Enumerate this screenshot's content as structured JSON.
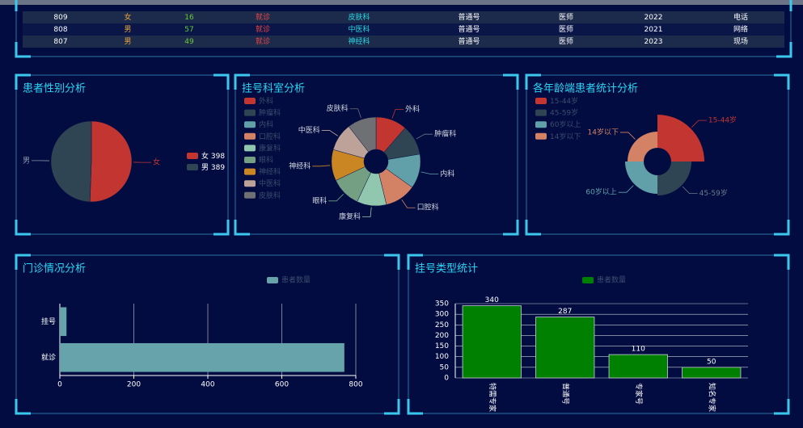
{
  "table": {
    "rows": [
      [
        809,
        "女",
        16,
        "就诊",
        "皮肤科",
        "普通号",
        "医师",
        2022,
        "电话"
      ],
      [
        808,
        "男",
        57,
        "就诊",
        "中医科",
        "普通号",
        "医师",
        2021,
        "网络"
      ],
      [
        807,
        "男",
        49,
        "就诊",
        "神经科",
        "普通号",
        "医师",
        2023,
        "现场"
      ]
    ]
  },
  "chart_data": [
    {
      "type": "pie",
      "title": "患者性别分析",
      "categories": [
        "女",
        "男"
      ],
      "values": [
        398,
        389
      ],
      "colors": [
        "#c23531",
        "#2f4554"
      ],
      "legend": "right"
    },
    {
      "type": "pie",
      "title": "挂号科室分析",
      "categories": [
        "外科",
        "肿瘤科",
        "内科",
        "口腔科",
        "康复科",
        "眼科",
        "神经科",
        "中医科",
        "皮肤科"
      ],
      "values": [
        95,
        92,
        105,
        95,
        90,
        92,
        95,
        85,
        88
      ],
      "colors": [
        "#c23531",
        "#2f4554",
        "#61a0a8",
        "#d48265",
        "#91c7ae",
        "#749f83",
        "#ca8622",
        "#bda29a",
        "#6e7074"
      ],
      "legend": "left"
    },
    {
      "type": "pie",
      "rose": true,
      "title": "各年龄端患者统计分析",
      "categories": [
        "15-44岁",
        "45-59岁",
        "60岁以上",
        "14岁以下"
      ],
      "values": [
        400,
        290,
        276,
        255
      ],
      "colors": [
        "#c23531",
        "#2f4554",
        "#61a0a8",
        "#d48265"
      ],
      "legend": "left"
    },
    {
      "type": "bar",
      "orientation": "horizontal",
      "title": "门诊情况分析",
      "categories": [
        "就诊",
        "挂号"
      ],
      "series": [
        {
          "name": "患者数量",
          "color": "#67a3aa",
          "values": [
            769,
            18
          ]
        }
      ],
      "xlim": [
        0,
        800
      ],
      "xticks": [
        0,
        200,
        400,
        600,
        800
      ],
      "grid": true
    },
    {
      "type": "bar",
      "title": "挂号类型统计",
      "categories": [
        "特需专家",
        "普通号",
        "专家号",
        "知名专家"
      ],
      "series": [
        {
          "name": "患者数量",
          "color": "#008000",
          "values": [
            340,
            287,
            110,
            50
          ]
        }
      ],
      "ylim": [
        0,
        350
      ],
      "yticks": [
        0,
        50,
        100,
        150,
        200,
        250,
        300,
        350
      ],
      "grid": true
    }
  ]
}
